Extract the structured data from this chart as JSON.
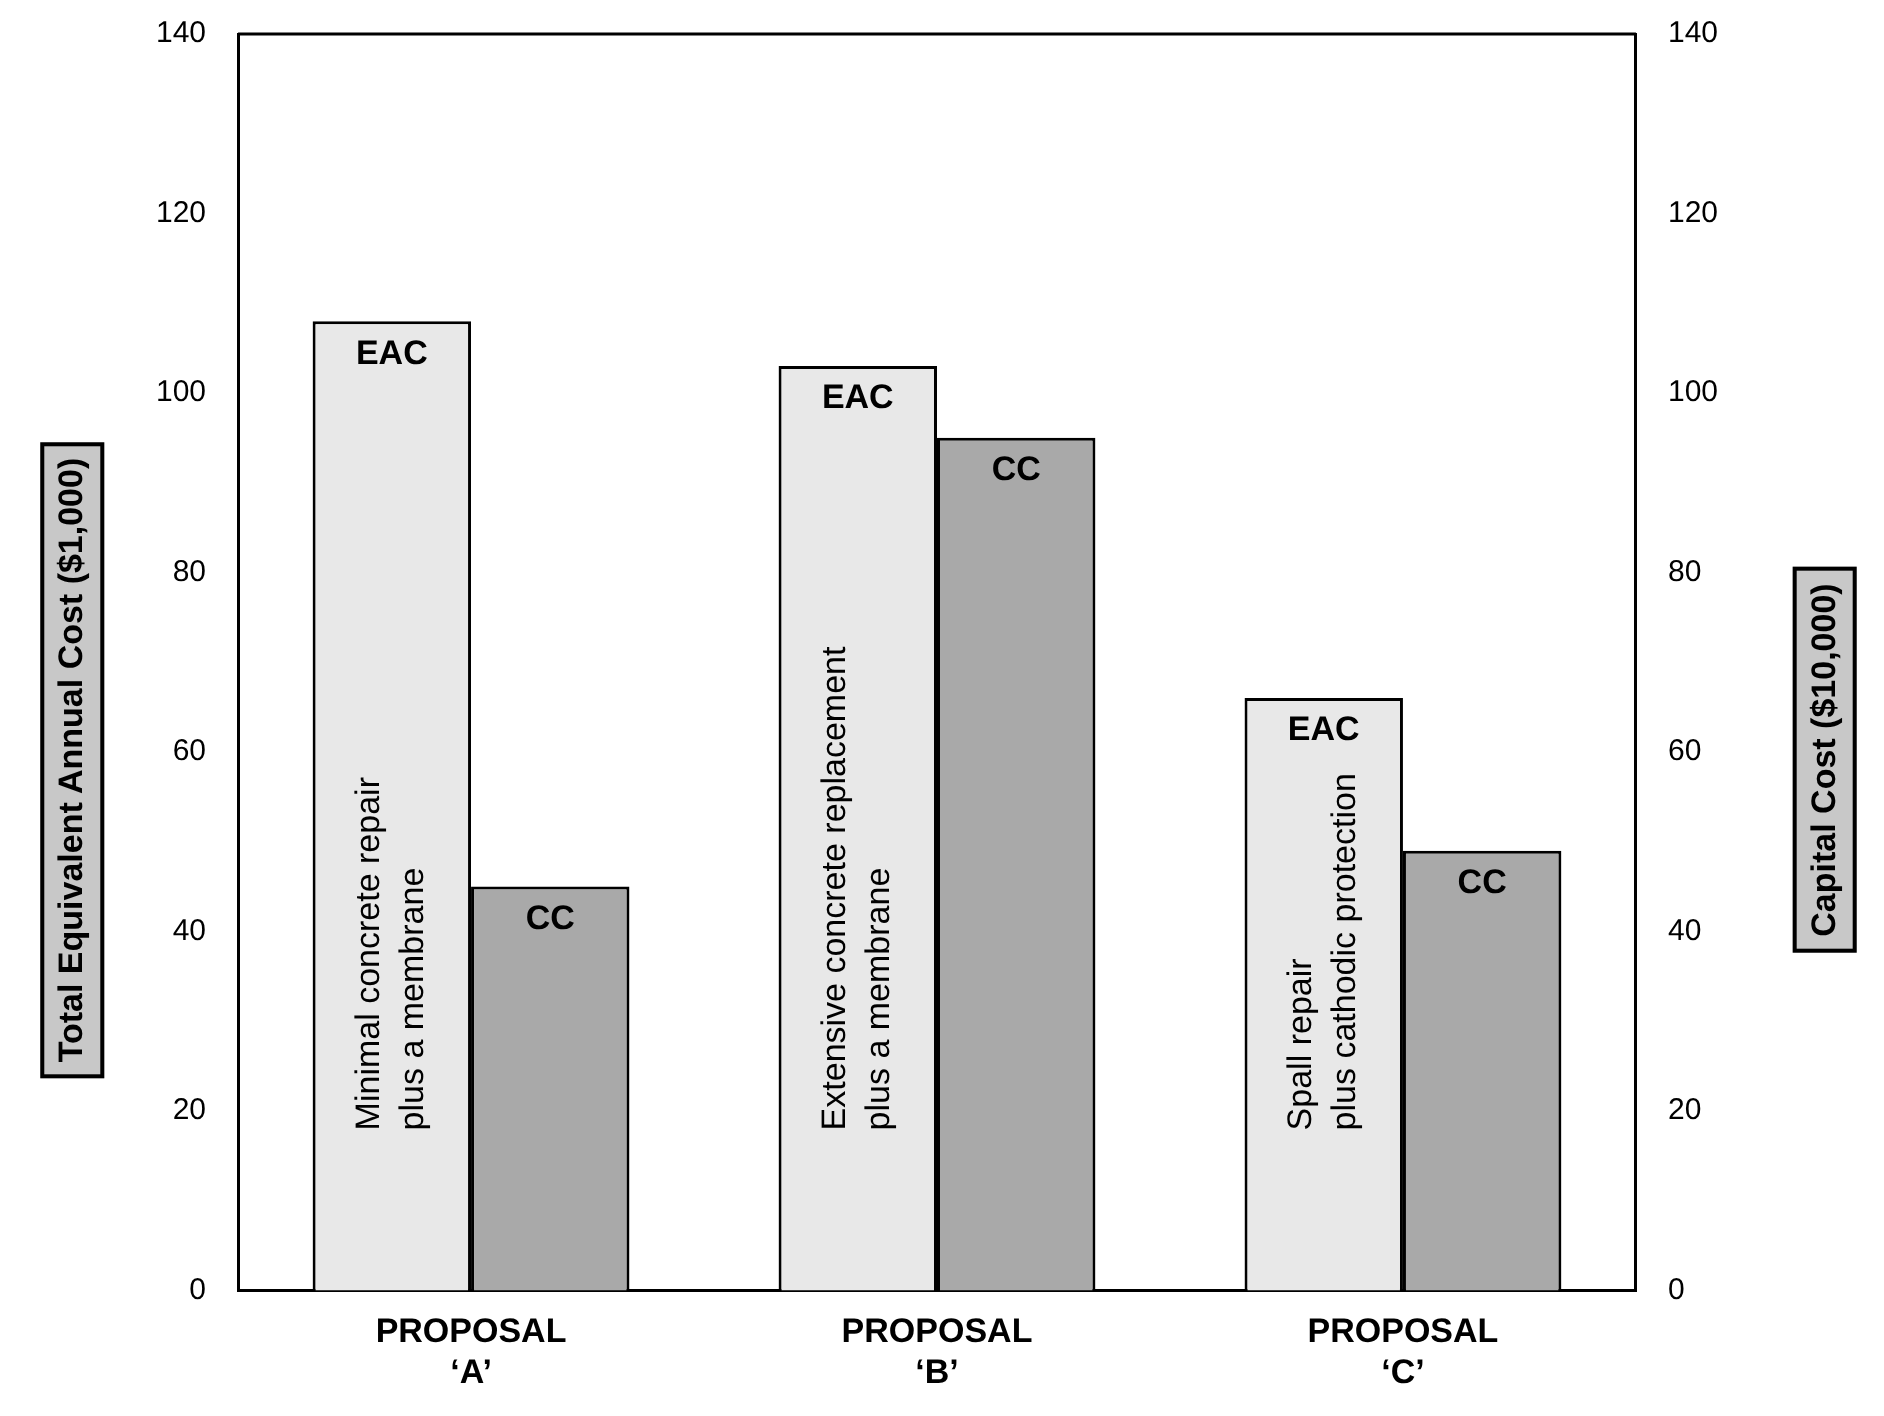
{
  "chart_data": {
    "type": "bar",
    "ylabel": "Total Equivalent Annual Cost ($1,000)",
    "y2label": "Capital Cost ($10,000)",
    "categories": [
      "PROPOSAL ‘A’",
      "PROPOSAL ‘B’",
      "PROPOSAL ‘C’"
    ],
    "series": [
      {
        "name": "EAC",
        "color": "#e8e8e8",
        "values": [
          108,
          103,
          66
        ]
      },
      {
        "name": "CC",
        "color": "#a9a9a9",
        "values": [
          45,
          95,
          49
        ]
      }
    ],
    "ylim": [
      0,
      140
    ],
    "yticks": [
      0,
      20,
      40,
      60,
      80,
      100,
      120,
      140
    ],
    "y2lim": [
      0,
      140
    ],
    "y2ticks": [
      0,
      20,
      40,
      60,
      80,
      100,
      120,
      140
    ],
    "annotations": [
      "Minimal concrete repair\nplus a membrane",
      "Extensive concrete replacement\nplus a membrane",
      "Spall repair\nplus cathodic protection"
    ],
    "grid": false,
    "legend": false
  }
}
